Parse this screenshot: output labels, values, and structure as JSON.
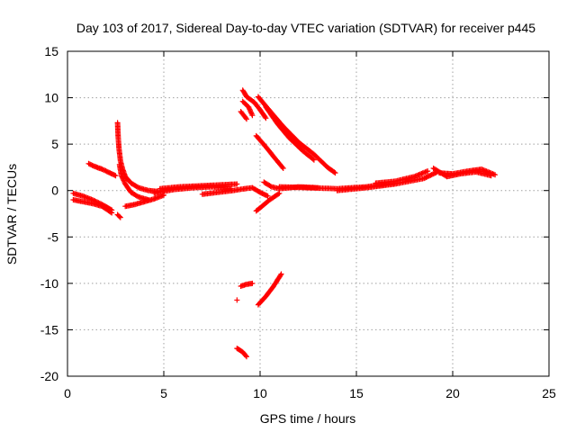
{
  "chart_data": {
    "type": "scatter",
    "title": "Day 103 of 2017, Sidereal Day-to-day VTEC variation (SDTVAR) for receiver p445",
    "xlabel": "GPS time / hours",
    "ylabel": "SDTVAR / TECUs",
    "xlim": [
      0,
      25
    ],
    "ylim": [
      -20,
      15
    ],
    "xticks": [
      0,
      5,
      10,
      15,
      20,
      25
    ],
    "yticks": [
      -20,
      -15,
      -10,
      -5,
      0,
      5,
      10,
      15
    ],
    "grid": true,
    "marker": "plus",
    "color": "#ff0000",
    "segments": [
      {
        "x": [
          0.3,
          0.8,
          1.3,
          1.8,
          2.3
        ],
        "y": [
          -0.3,
          -0.6,
          -1.0,
          -1.5,
          -2.1
        ]
      },
      {
        "x": [
          0.3,
          0.8,
          1.3,
          1.8,
          2.3
        ],
        "y": [
          -1.0,
          -1.2,
          -1.4,
          -1.7,
          -2.4
        ]
      },
      {
        "x": [
          1.1,
          1.4,
          1.8,
          2.1,
          2.5
        ],
        "y": [
          2.9,
          2.6,
          2.3,
          2.0,
          1.6
        ]
      },
      {
        "x": [
          2.6,
          2.75
        ],
        "y": [
          -2.6,
          -2.9
        ]
      },
      {
        "x": [
          2.6,
          2.63,
          2.68,
          2.75,
          2.85,
          3.0,
          3.3,
          3.7,
          4.2,
          4.7
        ],
        "y": [
          7.3,
          5.8,
          4.4,
          3.2,
          2.4,
          1.5,
          0.8,
          0.3,
          0.0,
          -0.1
        ]
      },
      {
        "x": [
          2.7,
          2.8,
          3.0,
          3.3,
          3.7,
          4.2
        ],
        "y": [
          2.8,
          1.6,
          0.7,
          -0.2,
          -0.7,
          -1.0
        ]
      },
      {
        "x": [
          3.0,
          3.5,
          4.0,
          4.5,
          5.0
        ],
        "y": [
          -1.7,
          -1.5,
          -1.2,
          -0.9,
          -0.5
        ]
      },
      {
        "x": [
          4.5,
          5.5,
          6.5,
          7.5,
          8.5
        ],
        "y": [
          -0.3,
          0.1,
          0.3,
          0.4,
          0.2
        ]
      },
      {
        "x": [
          4.8,
          5.8,
          6.8,
          7.8,
          8.8
        ],
        "y": [
          0.2,
          0.4,
          0.5,
          0.6,
          0.7
        ]
      },
      {
        "x": [
          7.0,
          7.8,
          8.6,
          9.2
        ],
        "y": [
          -0.4,
          -0.2,
          0.0,
          0.2
        ]
      },
      {
        "x": [
          9.2,
          9.6,
          10.0,
          10.4
        ],
        "y": [
          0.2,
          0.3,
          -0.2,
          -0.6
        ]
      },
      {
        "x": [
          9.8,
          10.1,
          10.5,
          11.0
        ],
        "y": [
          -2.2,
          -1.7,
          -1.0,
          -0.3
        ]
      },
      {
        "x": [
          10.2,
          10.6,
          11.0,
          12.0,
          13.0
        ],
        "y": [
          0.9,
          0.4,
          0.2,
          0.4,
          0.3
        ]
      },
      {
        "x": [
          11.0,
          12.5,
          14.0,
          15.5,
          17.0
        ],
        "y": [
          0.4,
          0.3,
          0.2,
          0.4,
          0.8
        ]
      },
      {
        "x": [
          14.0,
          15.5,
          17.0,
          18.5,
          19.2
        ],
        "y": [
          0.0,
          0.3,
          0.7,
          1.3,
          2.0
        ]
      },
      {
        "x": [
          16.0,
          17.0,
          18.0,
          18.7
        ],
        "y": [
          0.8,
          1.0,
          1.5,
          2.1
        ]
      },
      {
        "x": [
          19.0,
          19.7,
          20.4,
          21.2,
          22.0
        ],
        "y": [
          2.4,
          1.5,
          1.8,
          2.0,
          1.6
        ]
      },
      {
        "x": [
          19.3,
          20.0,
          20.8,
          21.5,
          22.2
        ],
        "y": [
          1.9,
          1.8,
          2.1,
          2.3,
          1.7
        ]
      },
      {
        "x": [
          9.0,
          9.3
        ],
        "y": [
          8.5,
          7.7
        ]
      },
      {
        "x": [
          9.1,
          9.4,
          9.6
        ],
        "y": [
          9.6,
          9.0,
          8.1
        ]
      },
      {
        "x": [
          9.1,
          9.3,
          9.7,
          10.0,
          10.3
        ],
        "y": [
          10.8,
          10.1,
          9.5,
          8.7,
          7.8
        ]
      },
      {
        "x": [
          9.9,
          10.5,
          11.2,
          12.0,
          12.8,
          13.5,
          13.9
        ],
        "y": [
          10.1,
          8.6,
          6.9,
          5.2,
          3.9,
          2.5,
          1.9
        ]
      },
      {
        "x": [
          10.3,
          10.9,
          11.5,
          12.2,
          12.8
        ],
        "y": [
          9.0,
          7.2,
          5.7,
          4.3,
          3.3
        ]
      },
      {
        "x": [
          9.8,
          10.3,
          10.8,
          11.2
        ],
        "y": [
          5.9,
          4.7,
          3.4,
          2.4
        ]
      },
      {
        "x": [
          9.0,
          9.3,
          9.6
        ],
        "y": [
          -10.3,
          -10.1,
          -10.0
        ]
      },
      {
        "x": [
          9.9,
          10.3,
          10.7,
          11.1
        ],
        "y": [
          -12.3,
          -11.4,
          -10.3,
          -9.0
        ]
      },
      {
        "x": [
          8.8
        ],
        "y": [
          -11.8
        ]
      },
      {
        "x": [
          8.8,
          9.1,
          9.3
        ],
        "y": [
          -17.0,
          -17.4,
          -17.9
        ]
      }
    ]
  }
}
